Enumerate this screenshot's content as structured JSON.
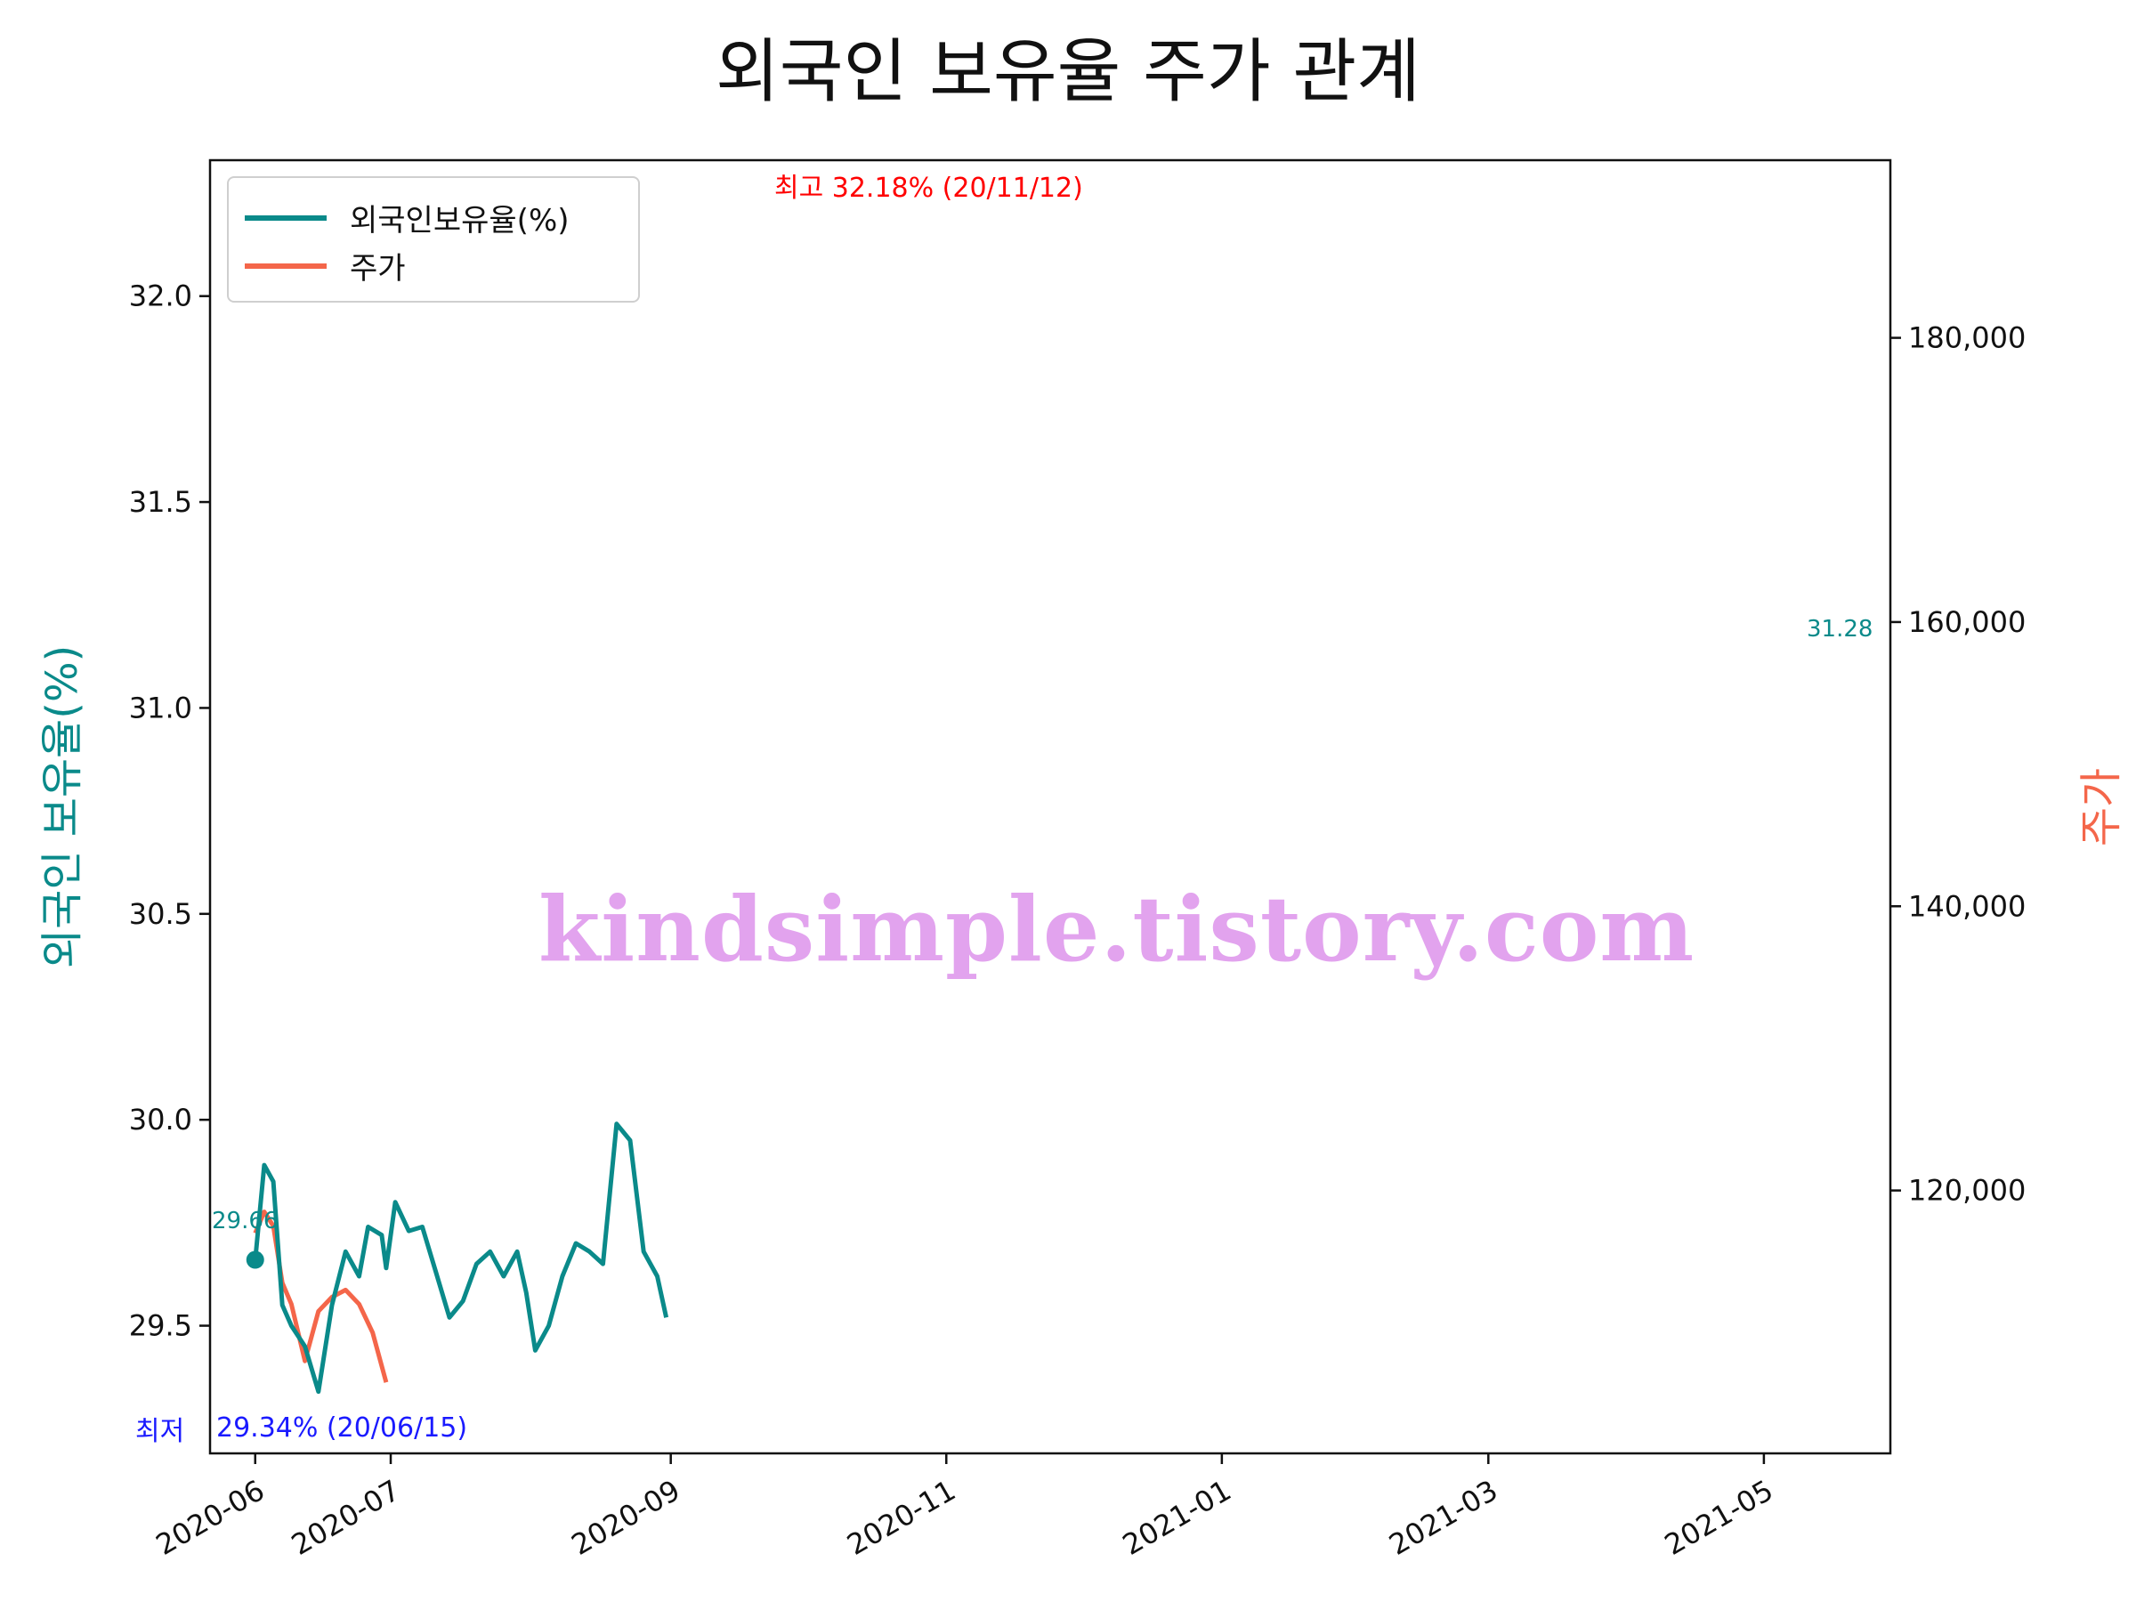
{
  "chart_data": {
    "type": "line",
    "title": "외국인 보유율 주가 관계",
    "ylabel_left": "외국인 보유율(%)",
    "ylabel_right": "주가",
    "xlim": [
      "2020-05-22",
      "2021-05-29"
    ],
    "ylim_left": [
      29.19,
      32.33
    ],
    "ylim_right": [
      101500,
      192500
    ],
    "left_ticks": [
      "29.5",
      "30.0",
      "30.5",
      "31.0",
      "31.5",
      "32.0"
    ],
    "right_ticks": [
      "120,000",
      "140,000",
      "160,000",
      "180,000"
    ],
    "x_ticks": [
      {
        "label": "2020-06",
        "date": "2020-06-01"
      },
      {
        "label": "2020-07",
        "date": "2020-07-01"
      },
      {
        "label": "2020-09",
        "date": "2020-09-01"
      },
      {
        "label": "2020-11",
        "date": "2020-11-01"
      },
      {
        "label": "2021-01",
        "date": "2021-01-01"
      },
      {
        "label": "2021-03",
        "date": "2021-03-01"
      },
      {
        "label": "2021-05",
        "date": "2021-05-01"
      }
    ],
    "legend_position": "top-left",
    "grid": false,
    "series": [
      {
        "name": "외국인보유율(%)",
        "color": "#0a8a8a",
        "axis": "left",
        "points": [
          [
            "2020-06-01",
            29.66
          ],
          [
            "2020-06-03",
            29.89
          ],
          [
            "2020-06-05",
            29.85
          ],
          [
            "2020-06-07",
            29.55
          ],
          [
            "2020-06-09",
            29.5
          ],
          [
            "2020-06-12",
            29.45
          ],
          [
            "2020-06-15",
            29.34
          ],
          [
            "2020-06-18",
            29.55
          ],
          [
            "2020-06-21",
            29.68
          ],
          [
            "2020-06-24",
            29.62
          ],
          [
            "2020-06-26",
            29.74
          ],
          [
            "2020-06-29",
            29.72
          ],
          [
            "2020-07-02",
            29.8
          ],
          [
            "2020-07-05",
            29.73
          ],
          [
            "2020-07-08",
            29.74
          ],
          [
            "2020-07-11",
            29.63
          ],
          [
            "2020-07-14",
            29.52
          ],
          [
            "2020-07-17",
            29.56
          ],
          [
            "2020-07-20",
            29.65
          ],
          [
            "2020-07-23",
            29.68
          ],
          [
            "2020-07-26",
            29.62
          ],
          [
            "2020-07-29",
            29.68
          ],
          [
            "2020-07-31",
            29.58
          ],
          [
            "2020-08-02",
            29.44
          ],
          [
            "2020-08-05",
            29.5
          ],
          [
            "2020-08-08",
            29.62
          ],
          [
            "2020-08-11",
            29.7
          ],
          [
            "2020-08-14",
            29.68
          ],
          [
            "2020-08-17",
            29.65
          ],
          [
            "2020-08-20",
            29.99
          ],
          [
            "2020-08-23",
            29.95
          ],
          [
            "2020-08-26",
            29.68
          ],
          [
            "2020-08-29",
            29.62
          ],
          [
            "2020-08-31",
            29.52
          ],
          [
            "2020-06-30",
            29.64
          ]
        ]
      },
      {
        "name": "주가",
        "color": "#f4664a",
        "axis": "right",
        "points": [
          [
            "2020-06-01",
            117000
          ],
          [
            "2020-06-03",
            118500
          ],
          [
            "2020-06-05",
            117500
          ],
          [
            "2020-06-07",
            113500
          ],
          [
            "2020-06-09",
            112000
          ],
          [
            "2020-06-12",
            108000
          ],
          [
            "2020-06-15",
            111500
          ],
          [
            "2020-06-18",
            112500
          ],
          [
            "2020-06-21",
            113000
          ],
          [
            "2020-06-24",
            112000
          ],
          [
            "2020-06-27",
            110000
          ],
          [
            "2020-06-30",
            106500
          ]
        ]
      }
    ],
    "annotations": {
      "high": "최고 32.18% (20/11/12)",
      "low_prefix": "최저",
      "low": "29.34% (20/06/15)",
      "start_value": "29.66",
      "end_value": "31.28"
    }
  },
  "watermark": "kindsimple.tistory.com"
}
